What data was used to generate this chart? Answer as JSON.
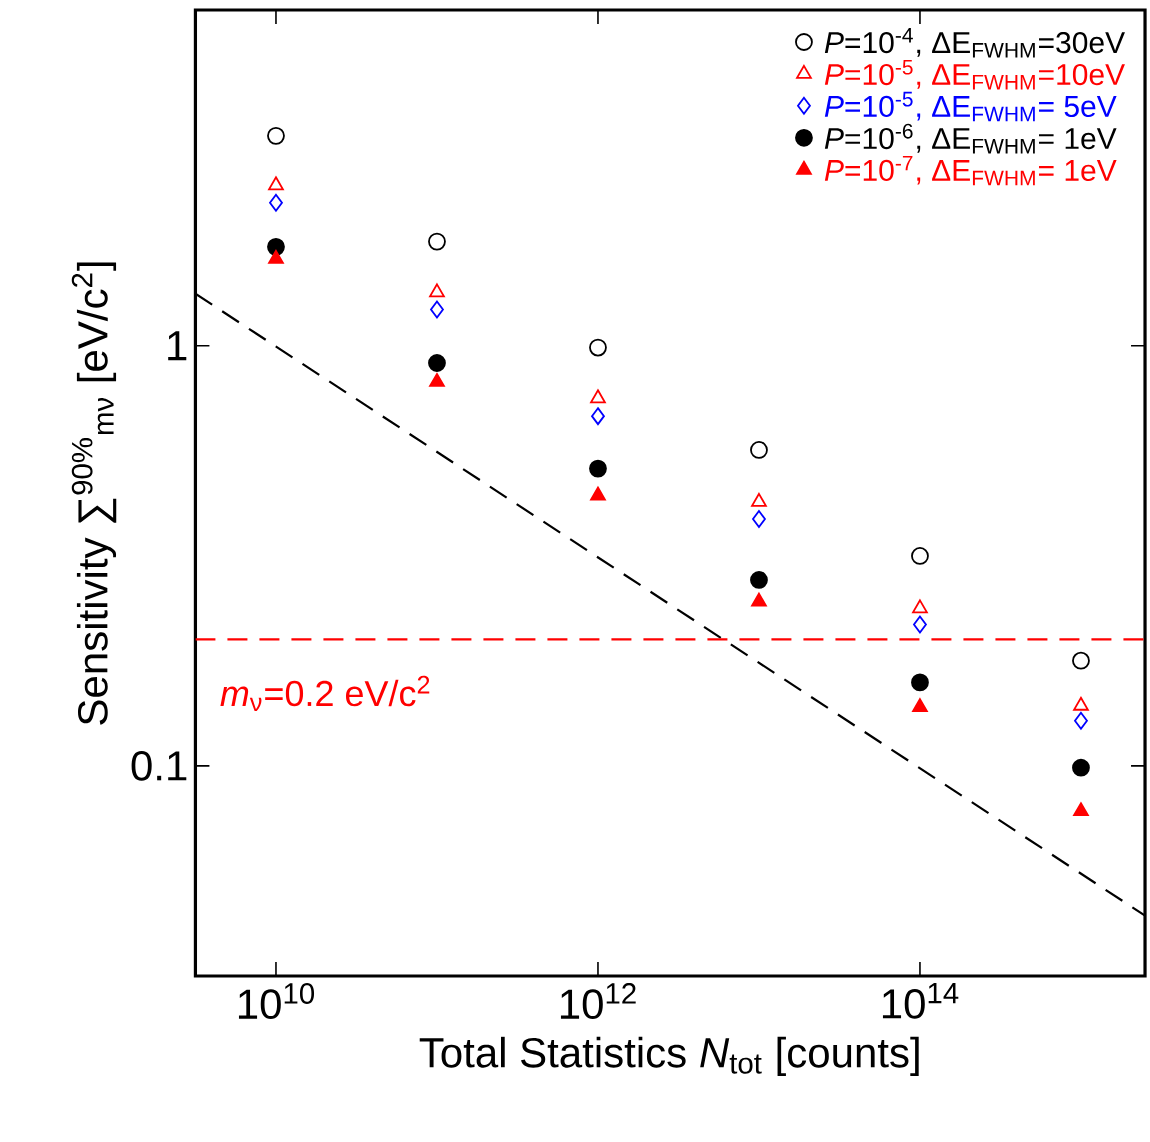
{
  "chart_data": {
    "type": "scatter",
    "xlabel": "Total Statistics *N*$_{tot}$ [counts]",
    "ylabel": "Sensitivity ∑$^{90%}$$_{mν}$ [eV/c$^{2}$]",
    "log": "xy",
    "legend": "top right",
    "xlim": [
      3160000000.0,
      2500000000000000.0
    ],
    "ylim": [
      0.0316,
      6.3
    ],
    "xticks": [
      {
        "value": 10000000000.0,
        "label": "10$^{10}$"
      },
      {
        "value": 1000000000000.0,
        "label": "10$^{12}$"
      },
      {
        "value": 100000000000000.0,
        "label": "10$^{14}$"
      }
    ],
    "yticks": [
      0.1,
      1
    ],
    "x": [
      10000000000.0,
      100000000000.0,
      1000000000000.0,
      10000000000000.0,
      100000000000000.0,
      1000000000000000.0
    ],
    "series": [
      {
        "name": "*P*=10$^{-4}$, ΔE$_{FWHM}$=30eV",
        "color": "#000000",
        "marker": "circle",
        "values": [
          3.16,
          1.77,
          0.99,
          0.565,
          0.316,
          0.178
        ]
      },
      {
        "name": "*P*=10$^{-5}$, ΔE$_{FWHM}$=10eV",
        "color": "#ff0000",
        "marker": "triangle",
        "values": [
          2.41,
          1.34,
          0.75,
          0.425,
          0.237,
          0.139
        ]
      },
      {
        "name": "*P*=10$^{-5}$, ΔE$_{FWHM}$= 5eV",
        "color": "#0000ff",
        "marker": "diamond",
        "values": [
          2.19,
          1.22,
          0.68,
          0.387,
          0.217,
          0.128
        ]
      },
      {
        "name": "*P*=10$^{-6}$, ΔE$_{FWHM}$= 1eV",
        "color": "#000000",
        "marker": "circle",
        "values": [
          1.72,
          0.91,
          0.51,
          0.277,
          0.158,
          0.099
        ]
      },
      {
        "name": "*P*=10$^{-7}$, ΔE$_{FWHM}$= 1eV",
        "color": "#ff0000",
        "marker": "triangle",
        "values": [
          1.61,
          0.82,
          0.44,
          0.246,
          0.138,
          0.078
        ]
      },
      {
        "type": "line",
        "color": "#000000",
        "line_style": "dashed",
        "marker": "none",
        "x": [
          3160000000.0,
          2500000000000000.0
        ],
        "values": [
          1.33,
          0.044
        ]
      }
    ],
    "ref_lines": [
      {
        "axis": "y",
        "value": 0.2,
        "label": "*m*$_{ν}$=0.2 eV/c$^{2}$",
        "color": "#ff0000",
        "line_style": "dashed"
      }
    ]
  }
}
